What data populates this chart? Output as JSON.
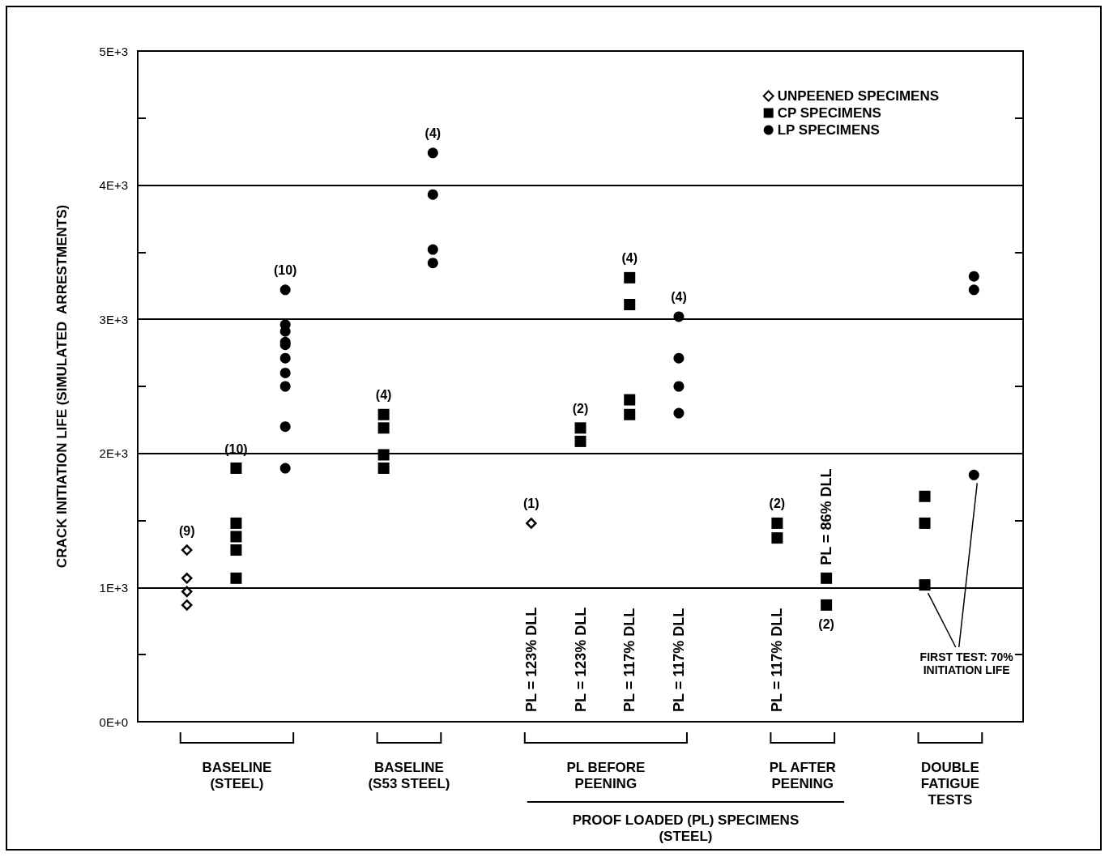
{
  "chart_data": {
    "type": "scatter",
    "ylabel": "CRACK INITIATION LIFE (SIMULATED  ARRESTMENTS)",
    "categories": [
      null,
      null,
      null,
      null,
      null,
      null,
      null,
      null,
      null,
      null,
      null,
      null,
      null,
      null,
      null,
      null,
      null,
      null,
      null
    ],
    "ylim": [
      0,
      5000
    ],
    "yticks": [
      {
        "value": 0,
        "label": "0E+0"
      },
      {
        "value": 500,
        "label": null
      },
      {
        "value": 1000,
        "label": "1E+3"
      },
      {
        "value": 1500,
        "label": null
      },
      {
        "value": 2000,
        "label": "2E+3"
      },
      {
        "value": 2500,
        "label": null
      },
      {
        "value": 3000,
        "label": "3E+3"
      },
      {
        "value": 3500,
        "label": null
      },
      {
        "value": 4000,
        "label": "4E+3"
      },
      {
        "value": 4500,
        "label": null
      },
      {
        "value": 5000,
        "label": "5E+3"
      }
    ],
    "grid": "y",
    "legend": "top right",
    "series": [
      {
        "name": "UNPEENED SPECIMENS",
        "color": "#000000",
        "marker": "diamond",
        "values": [
          null,
          1280,
          null,
          null,
          null,
          null,
          null,
          null,
          1480,
          null,
          null,
          null,
          null,
          null,
          null,
          null,
          null,
          null,
          null
        ]
      },
      {
        "color": "#000000",
        "marker": "diamond",
        "values": [
          null,
          1070,
          null,
          null,
          null,
          null,
          null,
          null,
          null,
          null,
          null,
          null,
          null,
          null,
          null,
          null,
          null,
          null,
          null
        ]
      },
      {
        "color": "#000000",
        "marker": "diamond",
        "values": [
          null,
          970,
          null,
          null,
          null,
          null,
          null,
          null,
          null,
          null,
          null,
          null,
          null,
          null,
          null,
          null,
          null,
          null,
          null
        ]
      },
      {
        "color": "#000000",
        "marker": "diamond",
        "values": [
          null,
          870,
          null,
          null,
          null,
          null,
          null,
          null,
          null,
          null,
          null,
          null,
          null,
          null,
          null,
          null,
          null,
          null,
          null
        ]
      },
      {
        "name": "CP SPECIMENS",
        "color": "#000000",
        "marker": "square",
        "values": [
          null,
          null,
          1890,
          null,
          null,
          2290,
          null,
          null,
          null,
          2190,
          3310,
          null,
          null,
          1480,
          1070,
          null,
          1680,
          null,
          null
        ]
      },
      {
        "color": "#000000",
        "marker": "square",
        "values": [
          null,
          null,
          1480,
          null,
          null,
          2190,
          null,
          null,
          null,
          2090,
          3110,
          null,
          null,
          1370,
          870,
          null,
          1480,
          null,
          null
        ]
      },
      {
        "color": "#000000",
        "marker": "square",
        "values": [
          null,
          null,
          1380,
          null,
          null,
          1990,
          null,
          null,
          null,
          null,
          2400,
          null,
          null,
          null,
          null,
          null,
          1020,
          null,
          null
        ]
      },
      {
        "color": "#000000",
        "marker": "square",
        "values": [
          null,
          null,
          1280,
          null,
          null,
          1890,
          null,
          null,
          null,
          null,
          2290,
          null,
          null,
          null,
          null,
          null,
          null,
          null,
          null
        ]
      },
      {
        "color": "#000000",
        "marker": "square",
        "values": [
          null,
          null,
          1070,
          null,
          null,
          null,
          null,
          null,
          null,
          null,
          null,
          null,
          null,
          null,
          null,
          null,
          null,
          null,
          null
        ]
      },
      {
        "name": "LP SPECIMENS",
        "color": "#000000",
        "marker": "circle",
        "values": [
          null,
          null,
          null,
          3220,
          null,
          null,
          4240,
          null,
          null,
          null,
          null,
          3020,
          null,
          null,
          null,
          null,
          null,
          3320,
          null
        ]
      },
      {
        "color": "#000000",
        "marker": "circle",
        "values": [
          null,
          null,
          null,
          2960,
          null,
          null,
          3930,
          null,
          null,
          null,
          null,
          2710,
          null,
          null,
          null,
          null,
          null,
          3220,
          null
        ]
      },
      {
        "color": "#000000",
        "marker": "circle",
        "values": [
          null,
          null,
          null,
          2910,
          null,
          null,
          3520,
          null,
          null,
          null,
          null,
          2500,
          null,
          null,
          null,
          null,
          null,
          1840,
          null
        ]
      },
      {
        "color": "#000000",
        "marker": "circle",
        "values": [
          null,
          null,
          null,
          2830,
          null,
          null,
          3420,
          null,
          null,
          null,
          null,
          2300,
          null,
          null,
          null,
          null,
          null,
          null,
          null
        ]
      },
      {
        "color": "#000000",
        "marker": "circle",
        "values": [
          null,
          null,
          null,
          2810,
          null,
          null,
          null,
          null,
          null,
          null,
          null,
          null,
          null,
          null,
          null,
          null,
          null,
          null,
          null
        ]
      },
      {
        "color": "#000000",
        "marker": "circle",
        "values": [
          null,
          null,
          null,
          2710,
          null,
          null,
          null,
          null,
          null,
          null,
          null,
          null,
          null,
          null,
          null,
          null,
          null,
          null,
          null
        ]
      },
      {
        "color": "#000000",
        "marker": "circle",
        "values": [
          null,
          null,
          null,
          2600,
          null,
          null,
          null,
          null,
          null,
          null,
          null,
          null,
          null,
          null,
          null,
          null,
          null,
          null,
          null
        ]
      },
      {
        "color": "#000000",
        "marker": "circle",
        "values": [
          null,
          null,
          null,
          2500,
          null,
          null,
          null,
          null,
          null,
          null,
          null,
          null,
          null,
          null,
          null,
          null,
          null,
          null,
          null
        ]
      },
      {
        "color": "#000000",
        "marker": "circle",
        "values": [
          null,
          null,
          null,
          2200,
          null,
          null,
          null,
          null,
          null,
          null,
          null,
          null,
          null,
          null,
          null,
          null,
          null,
          null,
          null
        ]
      },
      {
        "color": "#000000",
        "marker": "circle",
        "values": [
          null,
          null,
          null,
          1890,
          null,
          null,
          null,
          null,
          null,
          null,
          null,
          null,
          null,
          null,
          null,
          null,
          null,
          null,
          null
        ]
      }
    ],
    "annotations": [
      "PL = 123% DLL",
      "PL = 123% DLL",
      "PL = 117% DLL",
      "PL = 117% DLL",
      "PL = 117% DLL",
      "PL = 86% DLL",
      "FIRST TEST: 70%\nINITIATION LIFE",
      "BASELINE\n(STEEL)",
      "BASELINE\n(S53 STEEL)",
      "PL BEFORE\nPEENING",
      "PL AFTER\nPEENING",
      "DOUBLE\nFATIGUE\nTESTS",
      "PROOF LOADED (PL) SPECIMENS\n(STEEL)",
      "(9)",
      "(10)",
      "(10)",
      "(4)",
      "(4)",
      "(1)",
      "(2)",
      "(4)",
      "(4)",
      "(2)",
      "(2)"
    ]
  }
}
